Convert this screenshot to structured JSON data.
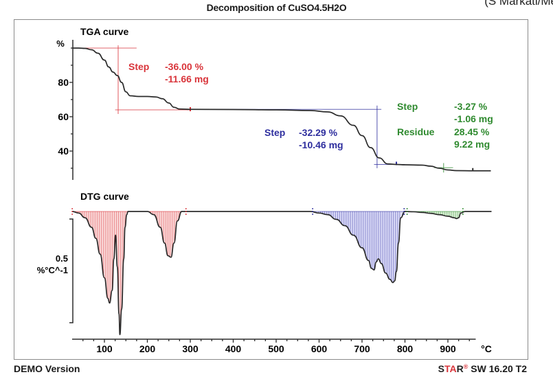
{
  "window": {
    "title": "Decomposition of CuSO4.5H2O",
    "corner_text": "(S Markati/Me",
    "footer_left": "DEMO Version",
    "footer_brand_s": "S",
    "footer_brand_ta": "TA",
    "footer_brand_r": "R",
    "footer_reg": "®",
    "footer_version": " SW 16.20 T2"
  },
  "colors": {
    "curve": "#2b2b2b",
    "step1": "#d9343a",
    "step1_fill": "#f4b4b4",
    "step2": "#2e2e9e",
    "step2_fill": "#b8b8ee",
    "step3": "#2f8a2f",
    "step3_fill": "#b8e0b0"
  },
  "chart_data": [
    {
      "type": "line",
      "title": "TGA curve",
      "xlabel": "°C",
      "ylabel": "%",
      "xlim": [
        25,
        1000
      ],
      "ylim": [
        25,
        102
      ],
      "x_ticks": [
        100,
        200,
        300,
        400,
        500,
        600,
        700,
        800,
        900
      ],
      "y_ticks": [
        40,
        60,
        80
      ],
      "series": [
        {
          "name": "TGA",
          "x": [
            25,
            40,
            55,
            70,
            85,
            100,
            110,
            120,
            130,
            140,
            150,
            160,
            180,
            200,
            220,
            235,
            250,
            262,
            275,
            300,
            400,
            500,
            580,
            620,
            650,
            680,
            700,
            720,
            740,
            760,
            780,
            800,
            840,
            860,
            880,
            900,
            920,
            960,
            1000
          ],
          "y": [
            100,
            100,
            99.8,
            99,
            97,
            93,
            89,
            86,
            84,
            80,
            74.5,
            72.2,
            71.8,
            71.8,
            71.5,
            70.5,
            68,
            65.5,
            64.5,
            64.3,
            64.2,
            64.0,
            63.6,
            62.8,
            60.5,
            55,
            49,
            42,
            36,
            32.5,
            32.2,
            32.0,
            31.8,
            31.2,
            30,
            29,
            28.6,
            28.5,
            28.5
          ]
        }
      ],
      "annotations": [
        {
          "group": "step1",
          "label": "Step",
          "values": [
            "-36.00 %",
            "-11.66 mg"
          ],
          "from_T": 25,
          "to_T": 300,
          "from_pct": 100,
          "to_pct": 64
        },
        {
          "group": "step2",
          "label": "Step",
          "values": [
            "-32.29 %",
            "-10.46 mg"
          ],
          "from_T": 300,
          "to_T": 775,
          "from_pct": 64.5,
          "to_pct": 32.2
        },
        {
          "group": "step3",
          "label": "Step",
          "values": [
            "-3.27 %",
            "-1.06 mg"
          ],
          "from_T": 790,
          "to_T": 960
        },
        {
          "group": "step3",
          "label": "Residue",
          "values": [
            "28.45 %",
            "9.22 mg"
          ],
          "at_T": 890
        }
      ]
    },
    {
      "type": "area",
      "title": "DTG curve",
      "xlabel": "°C",
      "ylabel": "%°C^-1",
      "scale_bar_value": 0.5,
      "scale_bar_label": "0.5",
      "xlim": [
        25,
        1000
      ],
      "series": [
        {
          "name": "DTG",
          "x": [
            25,
            40,
            55,
            70,
            80,
            90,
            100,
            108,
            112,
            118,
            122,
            126,
            130,
            134,
            136,
            140,
            145,
            148,
            152,
            155,
            160,
            180,
            200,
            215,
            230,
            240,
            248,
            255,
            262,
            270,
            280,
            300,
            400,
            500,
            580,
            600,
            620,
            640,
            660,
            680,
            700,
            715,
            722,
            728,
            733,
            738,
            745,
            755,
            765,
            772,
            776,
            780,
            785,
            790,
            800,
            820,
            840,
            860,
            880,
            900,
            915,
            920,
            925,
            930,
            940,
            960,
            1000
          ],
          "y": [
            0,
            -0.01,
            -0.04,
            -0.1,
            -0.17,
            -0.27,
            -0.42,
            -0.55,
            -0.58,
            -0.5,
            -0.3,
            -0.15,
            -0.35,
            -0.65,
            -0.78,
            -0.62,
            -0.3,
            -0.1,
            -0.02,
            0,
            0,
            0,
            0,
            -0.02,
            -0.1,
            -0.2,
            -0.28,
            -0.29,
            -0.2,
            -0.06,
            0,
            0,
            0,
            0,
            0,
            -0.01,
            -0.02,
            -0.05,
            -0.09,
            -0.15,
            -0.23,
            -0.31,
            -0.36,
            -0.37,
            -0.32,
            -0.3,
            -0.33,
            -0.39,
            -0.43,
            -0.45,
            -0.44,
            -0.38,
            -0.2,
            -0.04,
            0,
            -0.002,
            -0.006,
            -0.012,
            -0.02,
            -0.03,
            -0.04,
            -0.045,
            -0.04,
            -0.01,
            0,
            0,
            0
          ]
        }
      ],
      "integration_regions": [
        {
          "group": "step1",
          "from_T": 25,
          "to_T": 290
        },
        {
          "group": "step2",
          "from_T": 585,
          "to_T": 798
        },
        {
          "group": "step3",
          "from_T": 805,
          "to_T": 935
        }
      ]
    }
  ],
  "labels": {
    "tga_title": "TGA curve",
    "dtg_title": "DTG curve",
    "tga_unit": "%",
    "dtg_unit_value": "0.5",
    "dtg_unit": "%°C^-1",
    "x_unit": "°C",
    "x_tick_labels": [
      "100",
      "200",
      "300",
      "400",
      "500",
      "600",
      "700",
      "800",
      "900"
    ],
    "y_tick_labels": [
      "80",
      "60",
      "40"
    ]
  }
}
